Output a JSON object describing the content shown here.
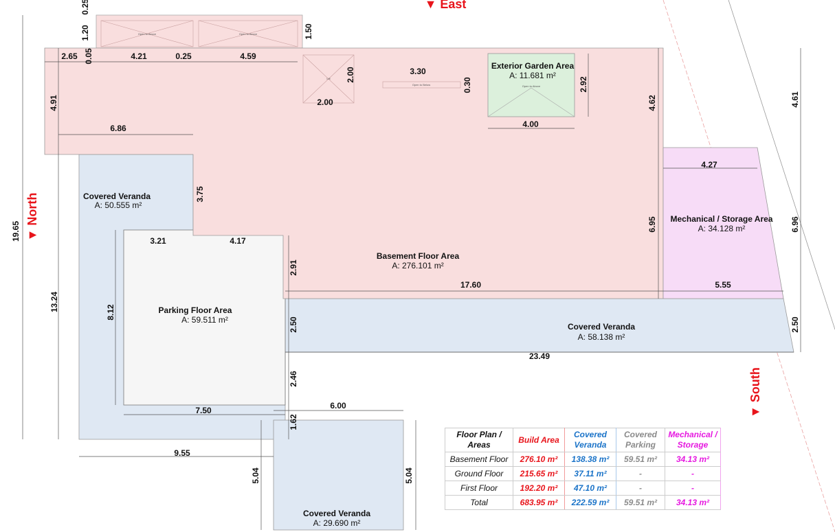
{
  "colors": {
    "build": "#e8141b",
    "veranda": "#1a73c8",
    "parking": "#8a8a8a",
    "storage": "#e619e0",
    "build_fill": "#f9dede",
    "veranda_fill": "#dfe8f3",
    "garden_fill": "#dcf0dc",
    "storage_fill": "#f7dcf7"
  },
  "compass": {
    "east": "▼ East",
    "north": "▼ North",
    "south": "▼ South"
  },
  "small_labels": {
    "open_above": "Open to Above",
    "open_below": "Open to Below",
    "lift": "Lift"
  },
  "areas": {
    "veranda_left": {
      "name": "Covered Veranda",
      "value": "A: 50.555 m²"
    },
    "parking": {
      "name": "Parking Floor Area",
      "value": "A: 59.511 m²"
    },
    "basement": {
      "name": "Basement Floor Area",
      "value": "A: 276.101 m²"
    },
    "garden": {
      "name": "Exterior Garden Area",
      "value": "A: 11.681 m²"
    },
    "storage": {
      "name": "Mechanical / Storage Area",
      "value": "A: 34.128 m²"
    },
    "veranda_south": {
      "name": "Covered Veranda",
      "value": "A: 58.138 m²"
    },
    "veranda_bottom": {
      "name": "Covered Veranda",
      "value": "A: 29.690 m²"
    }
  },
  "dims": [
    "0.25",
    "1.20",
    "1.50",
    "2.65",
    "0.05",
    "4.21",
    "0.25",
    "4.59",
    "2.00",
    "2.00",
    "3.30",
    "0.30",
    "2.92",
    "4.00",
    "4.62",
    "4.61",
    "4.91",
    "6.86",
    "4.27",
    "3.75",
    "19.65",
    "6.95",
    "6.96",
    "3.21",
    "4.17",
    "2.91",
    "17.60",
    "5.55",
    "13.24",
    "8.12",
    "2.50",
    "2.50",
    "23.49",
    "2.46",
    "7.50",
    "6.00",
    "1.62",
    "9.55",
    "5.04",
    "5.04"
  ],
  "table": {
    "headers": [
      "Floor Plan / Areas",
      "Build Area",
      "Covered Veranda",
      "Covered Parking",
      "Mechanical / Storage"
    ],
    "rows": [
      [
        "Basement Floor",
        "276.10 m²",
        "138.38 m²",
        "59.51 m²",
        "34.13 m²"
      ],
      [
        "Ground Floor",
        "215.65 m²",
        "37.11 m²",
        "-",
        "-"
      ],
      [
        "First Floor",
        "192.20 m²",
        "47.10 m²",
        "-",
        "-"
      ],
      [
        "Total",
        "683.95 m²",
        "222.59 m²",
        "59.51 m²",
        "34.13 m²"
      ]
    ]
  }
}
